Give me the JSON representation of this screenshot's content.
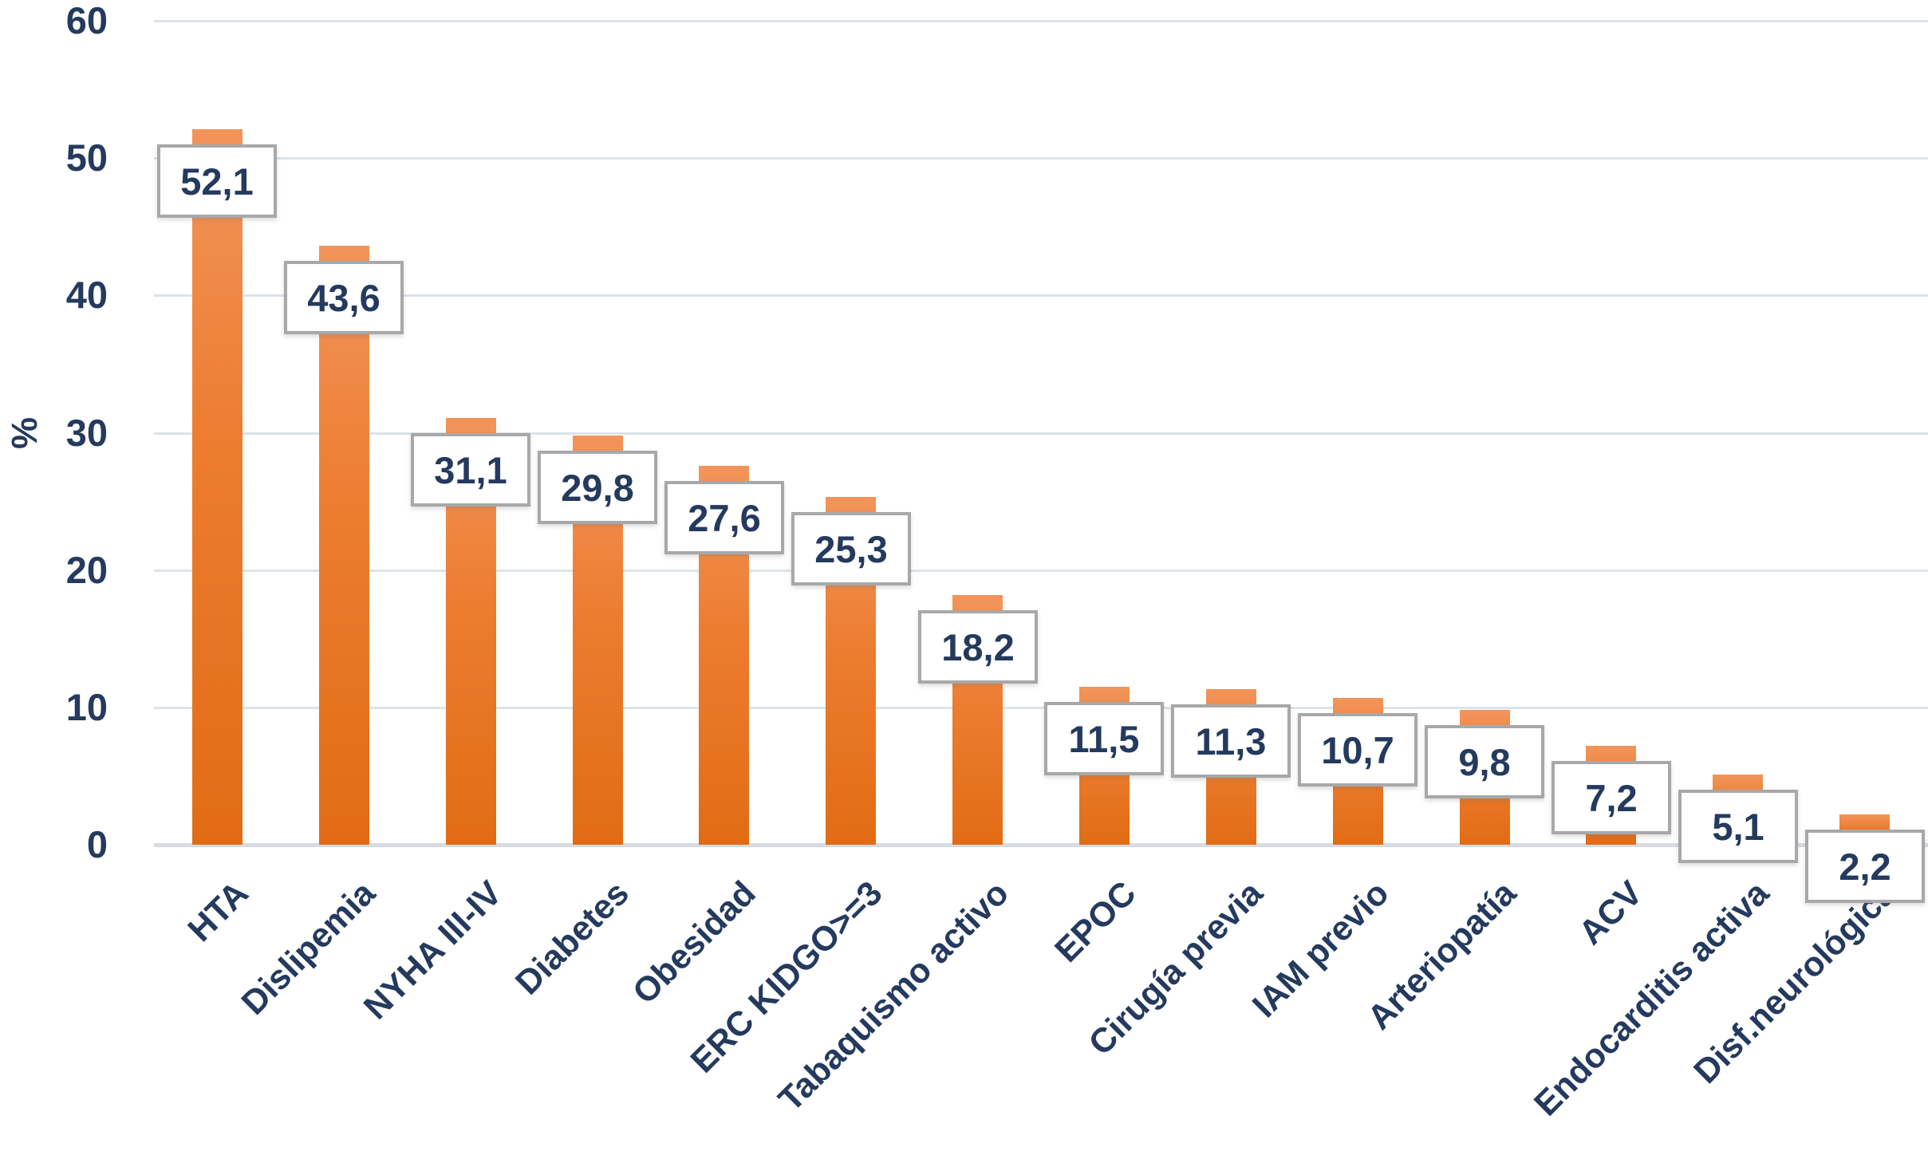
{
  "chart_data": {
    "type": "bar",
    "title": "",
    "xlabel": "",
    "ylabel": "%",
    "categories": [
      "HTA",
      "Dislipemia",
      "NYHA III-IV",
      "Diabetes",
      "Obesidad",
      "ERC KIDGO>=3",
      "Tabaquismo activo",
      "EPOC",
      "Cirugía previa",
      "IAM previo",
      "Arteriopatía",
      "ACV",
      "Endocarditis activa",
      "Disf.neurológica"
    ],
    "values": [
      52.1,
      43.6,
      31.1,
      29.8,
      27.6,
      25.3,
      18.2,
      11.5,
      11.3,
      10.7,
      9.8,
      7.2,
      5.1,
      2.2
    ],
    "value_labels": [
      "52,1",
      "43,6",
      "31,1",
      "29,8",
      "27,6",
      "25,3",
      "18,2",
      "11,5",
      "11,3",
      "10,7",
      "9,8",
      "7,2",
      "5,1",
      "2,2"
    ],
    "y_ticks": [
      0,
      10,
      20,
      30,
      40,
      50,
      60
    ],
    "ylim": [
      0,
      60
    ],
    "grid": true,
    "legend": false,
    "x_label_rotation_deg": 45,
    "colors": {
      "bar_top": "#f2945a",
      "bar_mid": "#ec7c2f",
      "bar_bottom": "#e26c15",
      "gridline": "#dce3ea",
      "axis_line": "#d8dce1",
      "text": "#243a5e",
      "value_box_bg": "#ffffff",
      "value_box_border": "#a8a8a8"
    }
  }
}
